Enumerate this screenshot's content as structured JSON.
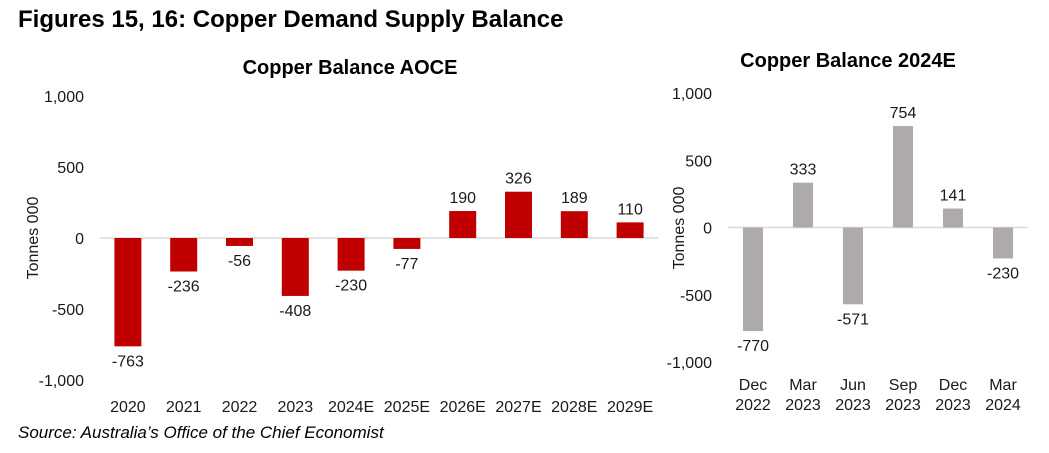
{
  "figure_title": "Figures 15, 16: Copper Demand Supply Balance",
  "source": "Source: Australia’s Office of the Chief Economist",
  "colors": {
    "left_bars": "#c00000",
    "right_bars": "#aeaaaa",
    "zero_line": "#d9d9d9"
  },
  "chart_data": [
    {
      "type": "bar",
      "title": "Copper Balance AOCE",
      "xlabel": "",
      "ylabel": "Tonnes 000",
      "ylim": [
        -1000,
        1000
      ],
      "yticks": [
        1000,
        500,
        0,
        -500,
        -1000
      ],
      "ytick_labels": [
        "1,000",
        "500",
        "0",
        "-500",
        "-1,000"
      ],
      "grid": false,
      "categories": [
        "2020",
        "2021",
        "2022",
        "2023",
        "2024E",
        "2025E",
        "2026E",
        "2027E",
        "2028E",
        "2029E"
      ],
      "values": [
        -763,
        -236,
        -56,
        -408,
        -230,
        -77,
        190,
        326,
        189,
        110
      ],
      "data_labels": [
        "-763",
        "-236",
        "-56",
        "-408",
        "-230",
        "-77",
        "190",
        "326",
        "189",
        "110"
      ]
    },
    {
      "type": "bar",
      "title": "Copper Balance 2024E",
      "xlabel": "",
      "ylabel": "Tonnes 000",
      "ylim": [
        -1000,
        1000
      ],
      "yticks": [
        1000,
        500,
        0,
        -500,
        -1000
      ],
      "ytick_labels": [
        "1,000",
        "500",
        "0",
        "-500",
        "-1,000"
      ],
      "grid": false,
      "categories": [
        [
          "Dec",
          "2022"
        ],
        [
          "Mar",
          "2023"
        ],
        [
          "Jun",
          "2023"
        ],
        [
          "Sep",
          "2023"
        ],
        [
          "Dec",
          "2023"
        ],
        [
          "Mar",
          "2024"
        ]
      ],
      "values": [
        -770,
        333,
        -571,
        754,
        141,
        -230
      ],
      "data_labels": [
        "-770",
        "333",
        "-571",
        "754",
        "141",
        "-230"
      ]
    }
  ]
}
